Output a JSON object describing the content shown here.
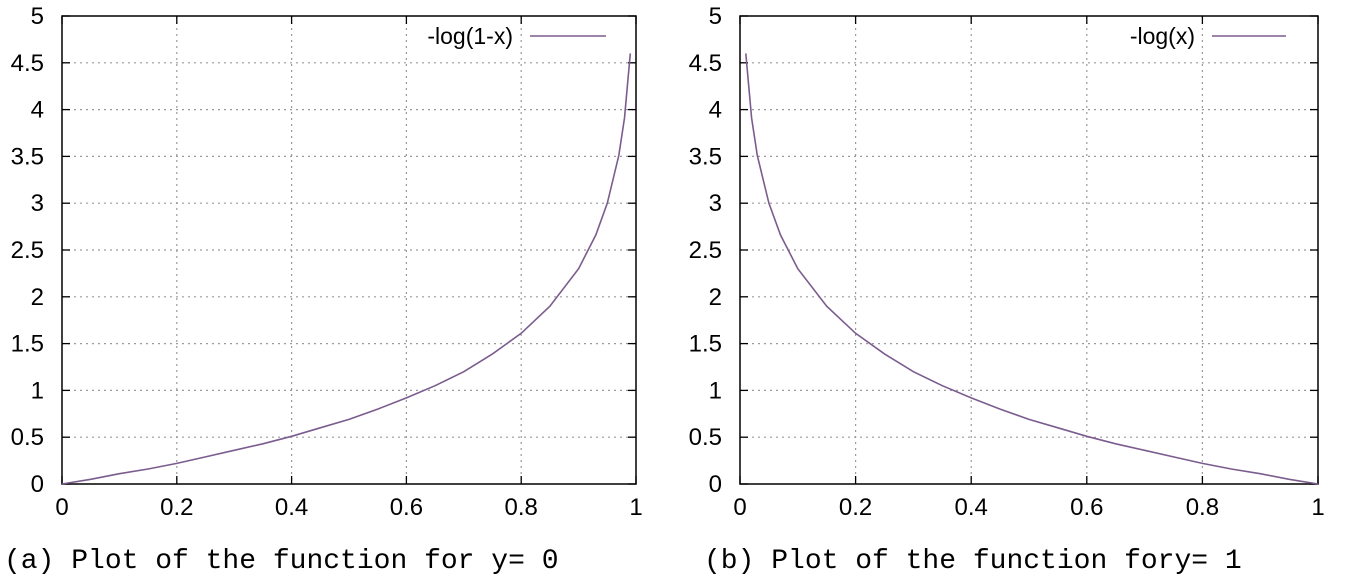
{
  "chart_data": [
    {
      "type": "line",
      "caption": "(a) Plot of the function for y= 0",
      "xlim": [
        0,
        1
      ],
      "ylim": [
        0,
        5
      ],
      "x_ticks": [
        "0",
        "0.2",
        "0.4",
        "0.6",
        "0.8",
        "1"
      ],
      "y_ticks": [
        "0",
        "0.5",
        "1",
        "1.5",
        "2",
        "2.5",
        "3",
        "3.5",
        "4",
        "4.5",
        "5"
      ],
      "grid": true,
      "legend_position": "top-right",
      "series": [
        {
          "name": "-log(1-x)",
          "color": "#7b5c8e",
          "x": [
            0,
            0.05,
            0.1,
            0.15,
            0.2,
            0.25,
            0.3,
            0.35,
            0.4,
            0.45,
            0.5,
            0.55,
            0.6,
            0.65,
            0.7,
            0.75,
            0.8,
            0.85,
            0.9,
            0.93,
            0.95,
            0.97,
            0.98,
            0.99
          ],
          "y": [
            0,
            0.05,
            0.11,
            0.16,
            0.22,
            0.29,
            0.36,
            0.43,
            0.51,
            0.6,
            0.69,
            0.8,
            0.92,
            1.05,
            1.2,
            1.39,
            1.61,
            1.9,
            2.3,
            2.66,
            3.0,
            3.51,
            3.91,
            4.6
          ]
        }
      ]
    },
    {
      "type": "line",
      "caption": "(b) Plot of the function fory= 1",
      "xlim": [
        0,
        1
      ],
      "ylim": [
        0,
        5
      ],
      "x_ticks": [
        "0",
        "0.2",
        "0.4",
        "0.6",
        "0.8",
        "1"
      ],
      "y_ticks": [
        "0",
        "0.5",
        "1",
        "1.5",
        "2",
        "2.5",
        "3",
        "3.5",
        "4",
        "4.5",
        "5"
      ],
      "grid": true,
      "legend_position": "top-right",
      "series": [
        {
          "name": "-log(x)",
          "color": "#7b5c8e",
          "x": [
            0.01,
            0.02,
            0.03,
            0.05,
            0.07,
            0.1,
            0.15,
            0.2,
            0.25,
            0.3,
            0.35,
            0.4,
            0.45,
            0.5,
            0.55,
            0.6,
            0.65,
            0.7,
            0.75,
            0.8,
            0.85,
            0.9,
            0.95,
            1.0
          ],
          "y": [
            4.6,
            3.91,
            3.51,
            3.0,
            2.66,
            2.3,
            1.9,
            1.61,
            1.39,
            1.2,
            1.05,
            0.92,
            0.8,
            0.69,
            0.6,
            0.51,
            0.43,
            0.36,
            0.29,
            0.22,
            0.16,
            0.11,
            0.05,
            0
          ]
        }
      ]
    }
  ]
}
